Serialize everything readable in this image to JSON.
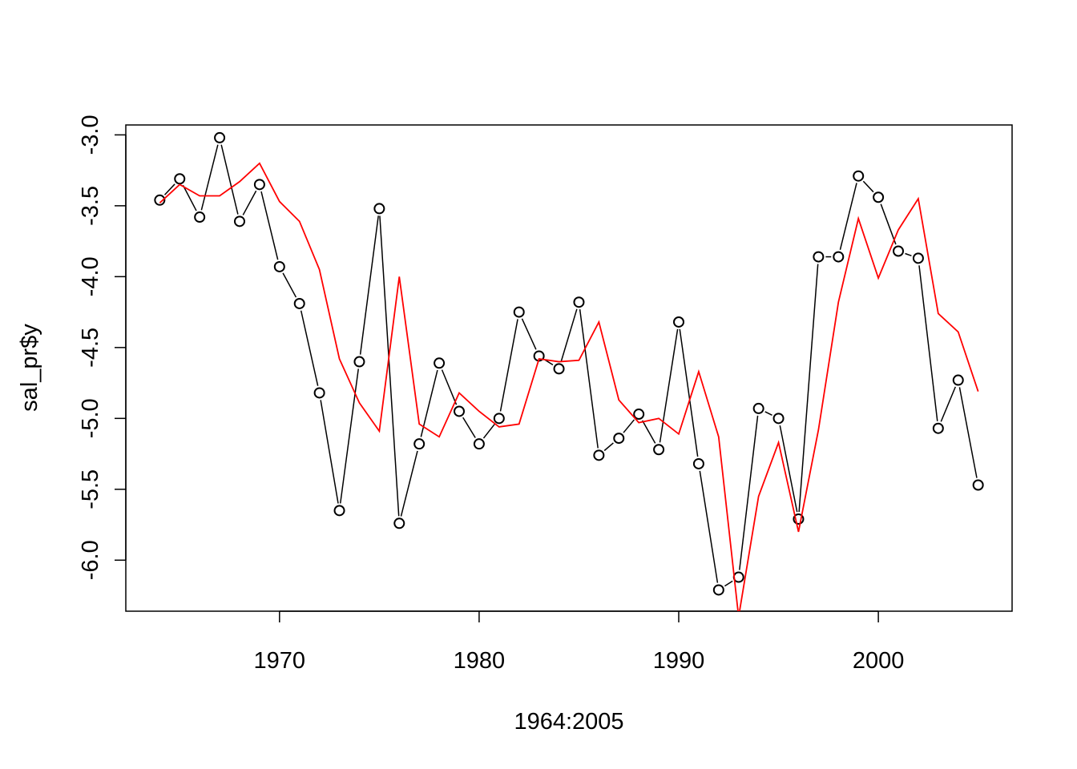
{
  "chart_data": {
    "type": "line",
    "title": "",
    "xlabel": "1964:2005",
    "ylabel": "sal_pr$y",
    "xlim": [
      1962.3,
      2006.7
    ],
    "ylim": [
      -6.36,
      -2.93
    ],
    "xticks": [
      1970,
      1980,
      1990,
      2000
    ],
    "yticks": [
      -6.0,
      -5.5,
      -5.0,
      -4.5,
      -4.0,
      -3.5,
      -3.0
    ],
    "ytick_labels": [
      "-6.0",
      "-5.5",
      "-5.0",
      "-4.5",
      "-4.0",
      "-3.5",
      "-3.0"
    ],
    "grid": false,
    "legend": "none",
    "x": [
      1964,
      1965,
      1966,
      1967,
      1968,
      1969,
      1970,
      1971,
      1972,
      1973,
      1974,
      1975,
      1976,
      1977,
      1978,
      1979,
      1980,
      1981,
      1982,
      1983,
      1984,
      1985,
      1986,
      1987,
      1988,
      1989,
      1990,
      1991,
      1992,
      1993,
      1994,
      1995,
      1996,
      1997,
      1998,
      1999,
      2000,
      2001,
      2002,
      2003,
      2004,
      2005
    ],
    "series": [
      {
        "color": "#000000",
        "style": "points-and-lines",
        "values": [
          -3.46,
          -3.31,
          -3.58,
          -3.02,
          -3.61,
          -3.35,
          -3.93,
          -4.19,
          -4.82,
          -5.65,
          -4.6,
          -3.52,
          -5.74,
          -5.18,
          -4.61,
          -4.95,
          -5.18,
          -5.0,
          -4.25,
          -4.56,
          -4.65,
          -4.18,
          -5.26,
          -5.14,
          -4.97,
          -5.22,
          -4.32,
          -5.32,
          -6.21,
          -6.12,
          -4.93,
          -5.0,
          -5.71,
          -3.86,
          -3.86,
          -3.29,
          -3.44,
          -3.82,
          -3.87,
          -5.07,
          -4.73,
          -5.47
        ]
      },
      {
        "color": "#ff0000",
        "style": "line",
        "values": [
          -3.48,
          -3.35,
          -3.43,
          -3.43,
          -3.33,
          -3.2,
          -3.47,
          -3.61,
          -3.95,
          -4.58,
          -4.89,
          -5.09,
          -4.0,
          -5.04,
          -5.13,
          -4.82,
          -4.95,
          -5.06,
          -5.04,
          -4.58,
          -4.6,
          -4.59,
          -4.32,
          -4.87,
          -5.03,
          -5.0,
          -5.11,
          -4.67,
          -5.13,
          -6.4,
          -5.55,
          -5.17,
          -5.8,
          -5.08,
          -4.18,
          -3.59,
          -4.01,
          -3.67,
          -3.45,
          -4.26,
          -4.39,
          -4.81
        ]
      }
    ]
  }
}
